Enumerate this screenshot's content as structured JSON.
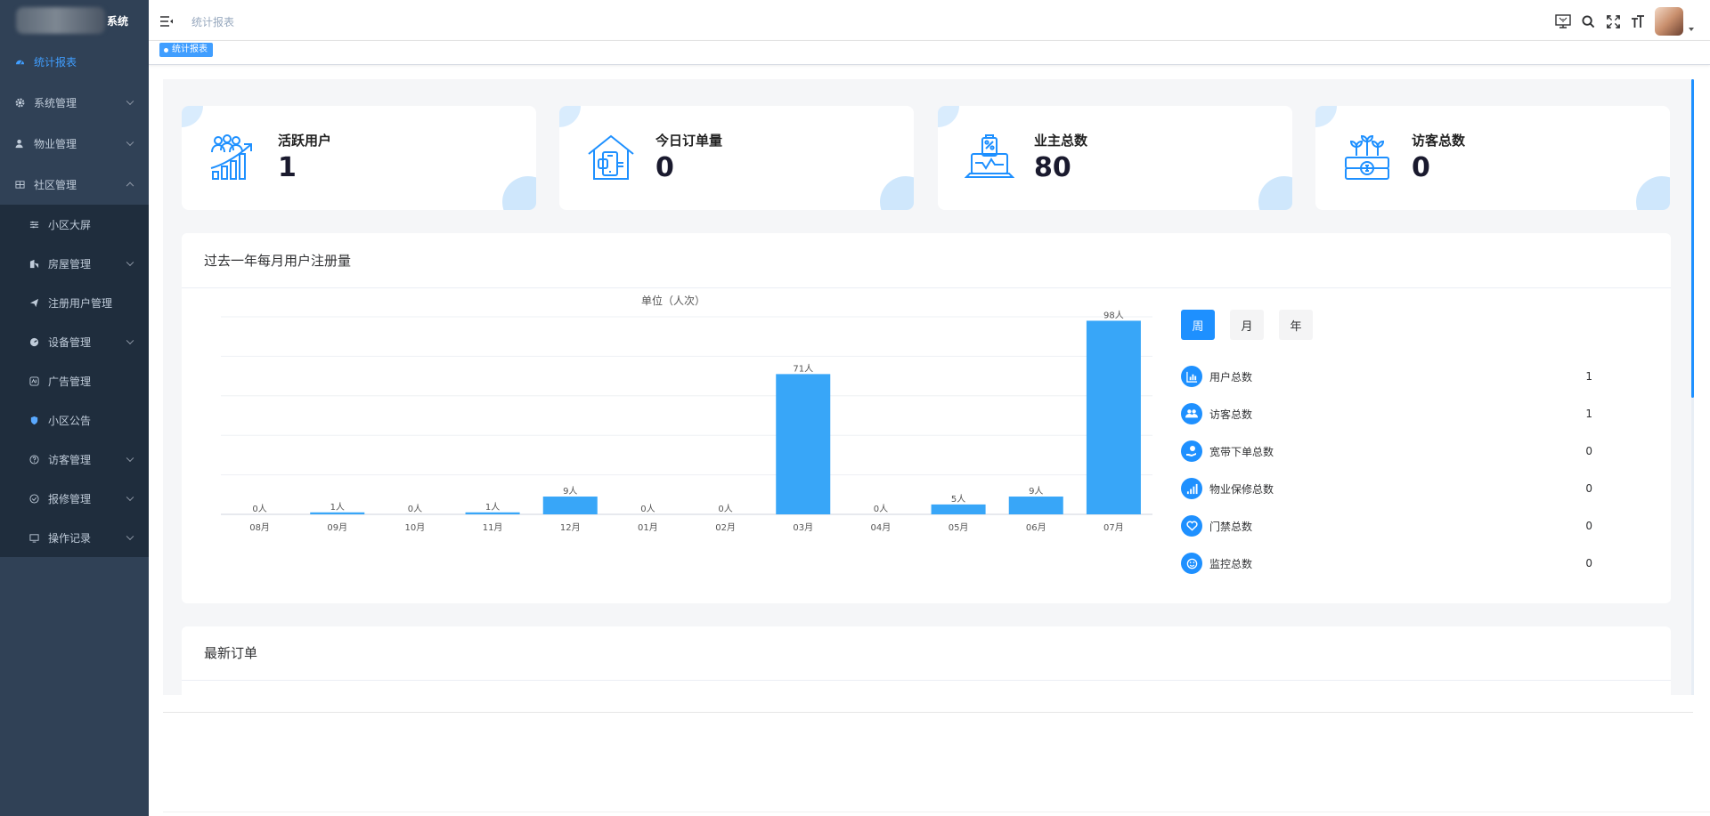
{
  "app": {
    "logo_text": "系统"
  },
  "sidebar": {
    "items": [
      {
        "label": "统计报表",
        "icon": "dashboard-icon",
        "active": true
      },
      {
        "label": "系统管理",
        "icon": "gear-icon"
      },
      {
        "label": "物业管理",
        "icon": "user-icon"
      },
      {
        "label": "社区管理",
        "icon": "grid-icon",
        "expanded": true
      }
    ],
    "sub_items": [
      {
        "label": "小区大屏",
        "icon": "sliders-icon"
      },
      {
        "label": "房屋管理",
        "icon": "building-icon"
      },
      {
        "label": "注册用户管理",
        "icon": "send-icon"
      },
      {
        "label": "设备管理",
        "icon": "dashboard-gauge-icon"
      },
      {
        "label": "广告管理",
        "icon": "ad-icon"
      },
      {
        "label": "小区公告",
        "icon": "shield-icon"
      },
      {
        "label": "访客管理",
        "icon": "question-icon"
      },
      {
        "label": "报修管理",
        "icon": "check-circle-icon"
      },
      {
        "label": "操作记录",
        "icon": "monitor-icon"
      }
    ]
  },
  "header": {
    "breadcrumb": "统计报表",
    "tag": "统计报表"
  },
  "cards": [
    {
      "title": "活跃用户",
      "value": "1",
      "icon": "growth-users-icon"
    },
    {
      "title": "今日订单量",
      "value": "0",
      "icon": "house-phone-icon"
    },
    {
      "title": "业主总数",
      "value": "80",
      "icon": "laptop-shop-icon"
    },
    {
      "title": "访客总数",
      "value": "0",
      "icon": "money-plant-icon"
    }
  ],
  "chart_panel": {
    "title": "过去一年每月用户注册量"
  },
  "chart_data": {
    "type": "bar",
    "title": "单位（人次）",
    "categories": [
      "08月",
      "09月",
      "10月",
      "11月",
      "12月",
      "01月",
      "02月",
      "03月",
      "04月",
      "05月",
      "06月",
      "07月"
    ],
    "values": [
      0,
      1,
      0,
      1,
      9,
      0,
      0,
      71,
      0,
      5,
      9,
      98
    ],
    "data_labels": [
      "0人",
      "1人",
      "0人",
      "1人",
      "9人",
      "0人",
      "0人",
      "71人",
      "0人",
      "5人",
      "9人",
      "98人"
    ],
    "ylim": [
      0,
      100
    ],
    "grid": true,
    "bar_color": "#38a6f8"
  },
  "period_buttons": [
    {
      "label": "周",
      "active": true
    },
    {
      "label": "月"
    },
    {
      "label": "年"
    }
  ],
  "stats": [
    {
      "label": "用户总数",
      "value": "1",
      "icon": "bar-chart-icon"
    },
    {
      "label": "访客总数",
      "value": "1",
      "icon": "users-icon"
    },
    {
      "label": "宽带下单总数",
      "value": "0",
      "icon": "hand-money-icon"
    },
    {
      "label": "物业保修总数",
      "value": "0",
      "icon": "signal-icon"
    },
    {
      "label": "门禁总数",
      "value": "0",
      "icon": "heart-icon"
    },
    {
      "label": "监控总数",
      "value": "0",
      "icon": "smile-icon"
    }
  ],
  "orders_panel": {
    "title": "最新订单"
  }
}
